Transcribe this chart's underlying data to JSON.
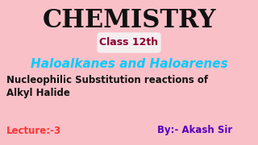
{
  "bg_color": "#f9c0c8",
  "title": "CHEMISTRY",
  "title_color": "#111111",
  "title_fontsize": 22,
  "badge_text": "Class 12th",
  "badge_text_color": "#8b0030",
  "badge_bg": "#f5eef0",
  "badge_fontsize": 9,
  "subtitle": "Haloalkanes and Haloarenes",
  "subtitle_color": "#00ccff",
  "subtitle_fontsize": 11,
  "line1": "Nucleophilic Substitution reactions of",
  "line2": "Alkyl Halide",
  "body_color": "#111111",
  "body_fontsize": 8.5,
  "lecture_text": "Lecture:-3",
  "lecture_color": "#ff3333",
  "lecture_fontsize": 8.5,
  "author_text": "By:- Akash Sir",
  "author_color": "#5500bb",
  "author_fontsize": 8.5
}
